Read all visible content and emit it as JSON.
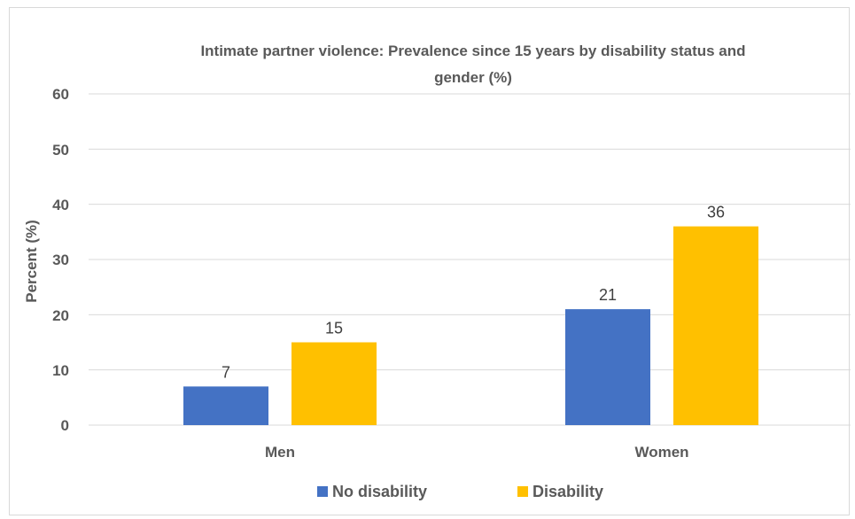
{
  "chart_data": {
    "type": "bar",
    "title": "Intimate partner violence:  Prevalence since 15 years by disability status and gender (%)",
    "title_lines": [
      "Intimate partner violence:  Prevalence since 15 years by disability status and",
      "gender (%)"
    ],
    "xlabel": "",
    "ylabel": "Percent (%)",
    "categories": [
      "Men",
      "Women"
    ],
    "series": [
      {
        "name": "No disability",
        "values": [
          7,
          21
        ],
        "color": "#4472c4"
      },
      {
        "name": "Disability",
        "values": [
          15,
          36
        ],
        "color": "#ffc000"
      }
    ],
    "data_labels": [
      [
        "7",
        "15"
      ],
      [
        "21",
        "36"
      ]
    ],
    "ylim": [
      0,
      60
    ],
    "yticks": [
      0,
      10,
      20,
      30,
      40,
      50,
      60
    ],
    "ytick_labels": [
      "0",
      "10",
      "20",
      "30",
      "40",
      "50",
      "60"
    ],
    "grid": true,
    "legend_position": "bottom"
  }
}
